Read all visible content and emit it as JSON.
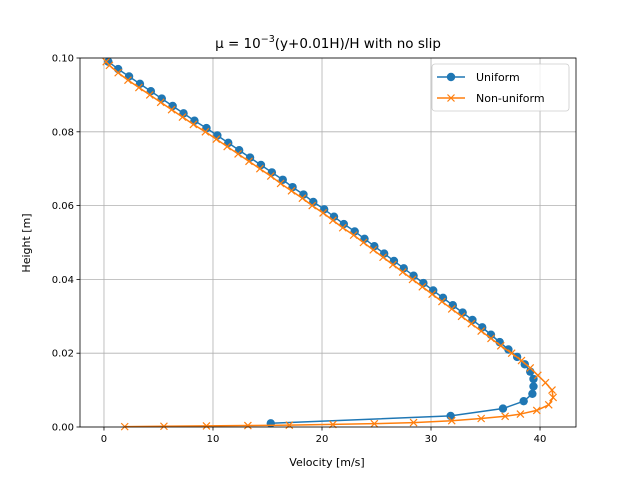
{
  "chart_data": {
    "type": "line",
    "title_prefix": "μ = 10",
    "title_exponent": "−3",
    "title_suffix": "(y+0.01H)/H with no slip",
    "xlabel": "Velocity [m/s]",
    "ylabel": "Height [m]",
    "xlim": [
      -2.2,
      43.3
    ],
    "ylim": [
      0,
      0.1
    ],
    "xticks": [
      0,
      10,
      20,
      30,
      40
    ],
    "xtick_labels": [
      "0",
      "10",
      "20",
      "30",
      "40"
    ],
    "yticks": [
      0,
      0.02,
      0.04,
      0.06,
      0.08,
      0.1
    ],
    "ytick_labels": [
      "0.00",
      "0.02",
      "0.04",
      "0.06",
      "0.08",
      "0.10"
    ],
    "grid": true,
    "legend_position": "top-right",
    "series": [
      {
        "name": "Uniform",
        "color": "#1f77b4",
        "marker": "circle",
        "points": [
          [
            15.3,
            0.001
          ],
          [
            31.8,
            0.003
          ],
          [
            36.6,
            0.005
          ],
          [
            38.5,
            0.007
          ],
          [
            39.3,
            0.009
          ],
          [
            39.4,
            0.011
          ],
          [
            39.4,
            0.013
          ],
          [
            39.1,
            0.015
          ],
          [
            38.6,
            0.017
          ],
          [
            37.9,
            0.019
          ],
          [
            37.1,
            0.021
          ],
          [
            36.3,
            0.023
          ],
          [
            35.5,
            0.025
          ],
          [
            34.7,
            0.027
          ],
          [
            33.8,
            0.029
          ],
          [
            32.9,
            0.031
          ],
          [
            32.0,
            0.033
          ],
          [
            31.1,
            0.035
          ],
          [
            30.2,
            0.037
          ],
          [
            29.3,
            0.039
          ],
          [
            28.4,
            0.041
          ],
          [
            27.5,
            0.043
          ],
          [
            26.6,
            0.045
          ],
          [
            25.7,
            0.047
          ],
          [
            24.8,
            0.049
          ],
          [
            23.9,
            0.051
          ],
          [
            23.0,
            0.053
          ],
          [
            22.0,
            0.055
          ],
          [
            21.1,
            0.057
          ],
          [
            20.2,
            0.059
          ],
          [
            19.2,
            0.061
          ],
          [
            18.3,
            0.063
          ],
          [
            17.3,
            0.065
          ],
          [
            16.4,
            0.067
          ],
          [
            15.4,
            0.069
          ],
          [
            14.4,
            0.071
          ],
          [
            13.4,
            0.073
          ],
          [
            12.4,
            0.075
          ],
          [
            11.4,
            0.077
          ],
          [
            10.4,
            0.079
          ],
          [
            9.4,
            0.081
          ],
          [
            8.3,
            0.083
          ],
          [
            7.3,
            0.085
          ],
          [
            6.3,
            0.087
          ],
          [
            5.3,
            0.089
          ],
          [
            4.3,
            0.091
          ],
          [
            3.3,
            0.093
          ],
          [
            2.3,
            0.095
          ],
          [
            1.3,
            0.097
          ],
          [
            0.4,
            0.099
          ]
        ]
      },
      {
        "name": "Non-uniform",
        "color": "#ff7f0e",
        "marker": "x",
        "points": [
          [
            1.9,
            0.0001
          ],
          [
            5.5,
            0.0002
          ],
          [
            9.4,
            0.0003
          ],
          [
            13.2,
            0.0004
          ],
          [
            17.0,
            0.0005
          ],
          [
            21.0,
            0.0007
          ],
          [
            24.8,
            0.0009
          ],
          [
            28.4,
            0.0012
          ],
          [
            31.9,
            0.0017
          ],
          [
            34.6,
            0.0023
          ],
          [
            36.8,
            0.0029
          ],
          [
            38.2,
            0.0035
          ],
          [
            39.7,
            0.0045
          ],
          [
            40.8,
            0.006
          ],
          [
            41.2,
            0.008
          ],
          [
            41.1,
            0.01
          ],
          [
            40.5,
            0.012
          ],
          [
            39.8,
            0.014
          ],
          [
            39.1,
            0.016
          ],
          [
            38.3,
            0.018
          ],
          [
            37.4,
            0.02
          ],
          [
            36.4,
            0.022
          ],
          [
            35.5,
            0.024
          ],
          [
            34.6,
            0.026
          ],
          [
            33.7,
            0.028
          ],
          [
            32.8,
            0.03
          ],
          [
            31.9,
            0.032
          ],
          [
            31.0,
            0.034
          ],
          [
            30.1,
            0.036
          ],
          [
            29.2,
            0.038
          ],
          [
            28.3,
            0.04
          ],
          [
            27.4,
            0.042
          ],
          [
            26.5,
            0.044
          ],
          [
            25.6,
            0.046
          ],
          [
            24.7,
            0.048
          ],
          [
            23.8,
            0.05
          ],
          [
            22.9,
            0.052
          ],
          [
            21.9,
            0.054
          ],
          [
            21.0,
            0.056
          ],
          [
            20.1,
            0.058
          ],
          [
            19.1,
            0.06
          ],
          [
            18.2,
            0.062
          ],
          [
            17.2,
            0.064
          ],
          [
            16.2,
            0.066
          ],
          [
            15.3,
            0.068
          ],
          [
            14.3,
            0.07
          ],
          [
            13.3,
            0.072
          ],
          [
            12.3,
            0.074
          ],
          [
            11.3,
            0.076
          ],
          [
            10.3,
            0.078
          ],
          [
            9.3,
            0.08
          ],
          [
            8.2,
            0.082
          ],
          [
            7.2,
            0.084
          ],
          [
            6.2,
            0.086
          ],
          [
            5.2,
            0.088
          ],
          [
            4.2,
            0.09
          ],
          [
            3.2,
            0.092
          ],
          [
            2.2,
            0.094
          ],
          [
            1.3,
            0.096
          ],
          [
            0.5,
            0.098
          ],
          [
            0.2,
            0.099
          ]
        ]
      }
    ]
  }
}
